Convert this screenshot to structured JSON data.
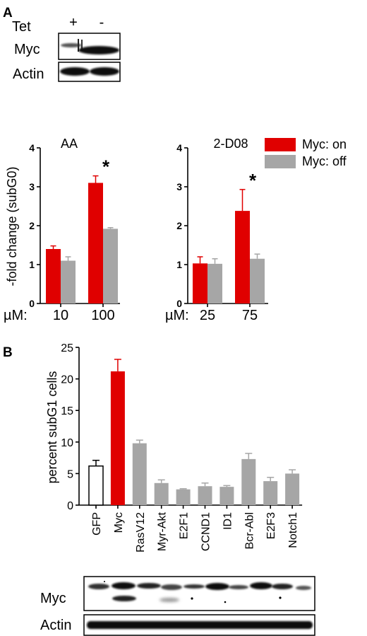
{
  "panel_a": {
    "letter": "A",
    "tet_label": "Tet",
    "lanes": [
      "+",
      "-"
    ],
    "blot_rows": [
      "Myc",
      "Actin"
    ]
  },
  "panel_b": {
    "letter": "B",
    "blot_rows": [
      "Myc",
      "Actin"
    ]
  },
  "colors": {
    "myc_on": "#e00000",
    "myc_off": "#a6a6a6",
    "gfp": "#ffffff"
  },
  "chart_data": [
    {
      "type": "bar",
      "title": "AA",
      "ylabel": "-fold change (subG0)",
      "xprefix": "µM:",
      "categories": [
        "10",
        "100"
      ],
      "series": [
        {
          "name": "Myc: on",
          "values": [
            1.4,
            3.1
          ],
          "errors": [
            0.08,
            0.18
          ]
        },
        {
          "name": "Myc: off",
          "values": [
            1.1,
            1.92
          ],
          "errors": [
            0.1,
            0.03
          ]
        }
      ],
      "ylim": [
        0,
        4
      ],
      "yticks": [
        "0",
        "1",
        "2",
        "3",
        "4"
      ],
      "annotation": "*",
      "annotation_category": 1
    },
    {
      "type": "bar",
      "title": "2-D08",
      "xprefix": "µM:",
      "categories": [
        "25",
        "75"
      ],
      "series": [
        {
          "name": "Myc: on",
          "values": [
            1.03,
            2.38
          ],
          "errors": [
            0.17,
            0.55
          ]
        },
        {
          "name": "Myc: off",
          "values": [
            1.02,
            1.15
          ],
          "errors": [
            0.13,
            0.12
          ]
        }
      ],
      "ylim": [
        0,
        4
      ],
      "yticks": [
        "0",
        "1",
        "2",
        "3",
        "4"
      ],
      "annotation": "*",
      "annotation_category": 1,
      "legend_placement": "right"
    },
    {
      "type": "bar",
      "ylabel": "percent subG1 cells",
      "categories": [
        "GFP",
        "Myc",
        "RasV12",
        "Myr-Akt",
        "E2F1",
        "CCND1",
        "ID1",
        "Bcr-Abl",
        "E2F3",
        "Notch1"
      ],
      "values": [
        6.2,
        21.2,
        9.8,
        3.5,
        2.5,
        3.0,
        2.9,
        7.3,
        3.8,
        5.0
      ],
      "errors": [
        0.9,
        1.9,
        0.5,
        0.5,
        0.1,
        0.5,
        0.2,
        0.9,
        0.6,
        0.6
      ],
      "ylim": [
        0,
        25
      ],
      "yticks": [
        "0",
        "5",
        "10",
        "15",
        "20",
        "25"
      ]
    }
  ]
}
